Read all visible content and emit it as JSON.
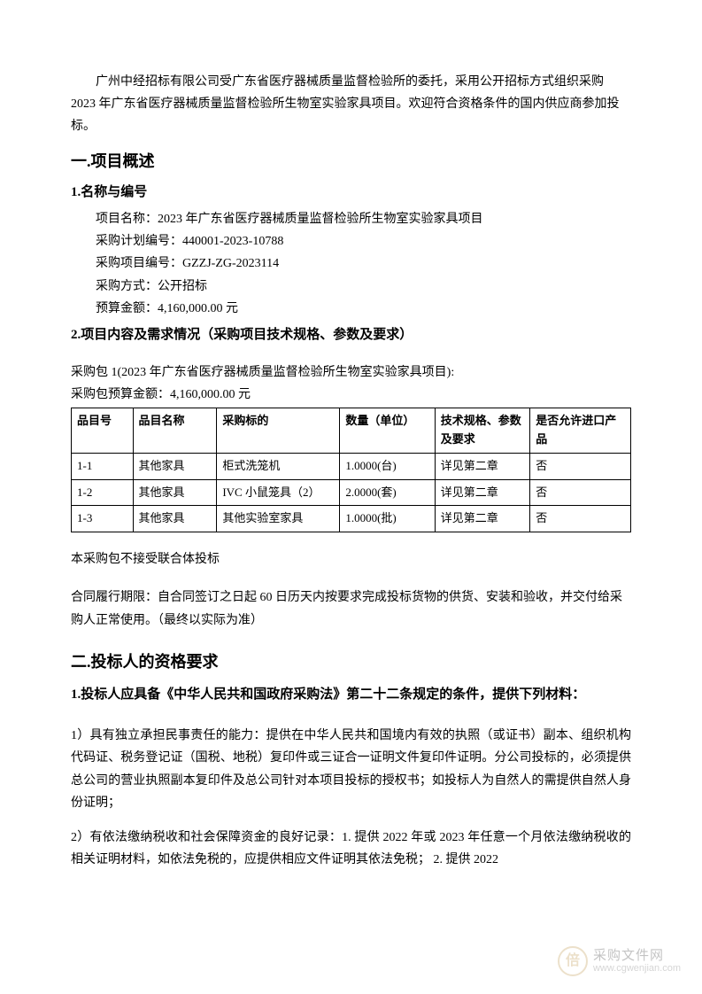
{
  "intro": "广州中经招标有限公司受广东省医疗器械质量监督检验所的委托，采用公开招标方式组织采购 2023 年广东省医疗器械质量监督检验所生物室实验家具项目。欢迎符合资格条件的国内供应商参加投标。",
  "section1": {
    "heading": "一.项目概述",
    "sub1": {
      "heading": "1.名称与编号",
      "proj_name_label": "项目名称：",
      "proj_name": "2023 年广东省医疗器械质量监督检验所生物室实验家具项目",
      "plan_no_label": "采购计划编号：",
      "plan_no": "440001-2023-10788",
      "proj_no_label": "采购项目编号：",
      "proj_no": "GZZJ-ZG-2023114",
      "method_label": "采购方式：",
      "method": "公开招标",
      "budget_label": "预算金额：",
      "budget": "4,160,000.00 元"
    },
    "sub2": {
      "heading": "2.项目内容及需求情况（采购项目技术规格、参数及要求）",
      "pkg_title": "采购包 1(2023 年广东省医疗器械质量监督检验所生物室实验家具项目):",
      "pkg_budget": "采购包预算金额：4,160,000.00 元",
      "table": {
        "headers": [
          "品目号",
          "品目名称",
          "采购标的",
          "数量（单位）",
          "技术规格、参数及要求",
          "是否允许进口产品"
        ],
        "rows": [
          [
            "1-1",
            "其他家具",
            "柜式洗笼机",
            "1.0000(台)",
            "详见第二章",
            "否"
          ],
          [
            "1-2",
            "其他家具",
            "IVC 小鼠笼具（2）",
            "2.0000(套)",
            "详见第二章",
            "否"
          ],
          [
            "1-3",
            "其他家具",
            "其他实验室家具",
            "1.0000(批)",
            "详见第二章",
            "否"
          ]
        ]
      },
      "note1": "本采购包不接受联合体投标",
      "note2": "合同履行期限：自合同签订之日起 60 日历天内按要求完成投标货物的供货、安装和验收，并交付给采购人正常使用。（最终以实际为准）"
    }
  },
  "section2": {
    "heading": "二.投标人的资格要求",
    "sub1": {
      "heading": "1.投标人应具备《中华人民共和国政府采购法》第二十二条规定的条件，提供下列材料：",
      "para1": "1）具有独立承担民事责任的能力：提供在中华人民共和国境内有效的执照（或证书）副本、组织机构代码证、税务登记证（国税、地税）复印件或三证合一证明文件复印件证明。分公司投标的，必须提供总公司的营业执照副本复印件及总公司针对本项目投标的授权书；如投标人为自然人的需提供自然人身份证明；",
      "para2": "2）有依法缴纳税收和社会保障资金的良好记录：1. 提供 2022 年或 2023 年任意一个月依法缴纳税收的相关证明材料，如依法免税的，应提供相应文件证明其依法免税； 2. 提供 2022"
    }
  },
  "watermark": {
    "glyph": "倍",
    "cn": "采购文件网",
    "url": "www.cgwenjian.com"
  }
}
